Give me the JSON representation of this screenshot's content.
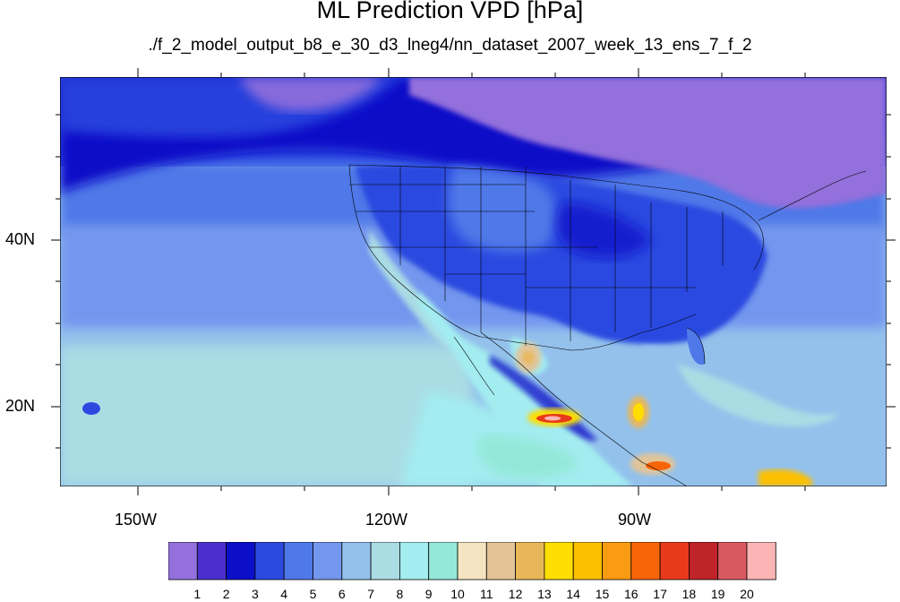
{
  "title": "ML Prediction VPD [hPa]",
  "subtitle": "./f_2_model_output_b8_e_30_d3_lneg4/nn_dataset_2007_week_13_ens_7_f_2",
  "axes": {
    "lon_ticks": [
      {
        "label": "150W",
        "value": -150
      },
      {
        "label": "120W",
        "value": -120
      },
      {
        "label": "90W",
        "value": -90
      }
    ],
    "lat_ticks": [
      {
        "label": "40N",
        "value": 40
      },
      {
        "label": "20N",
        "value": 20
      }
    ]
  },
  "colorbar": {
    "colors": [
      "#9370db",
      "#4b2fcd",
      "#0b0fc8",
      "#2c49e0",
      "#4f78e8",
      "#7396ee",
      "#93c1ec",
      "#aadce4",
      "#a3ecf0",
      "#93e8d8",
      "#f4e4c2",
      "#e2c497",
      "#e8b858",
      "#fede00",
      "#fdc000",
      "#fb9a13",
      "#f86408",
      "#e83a1a",
      "#bf2429",
      "#d85a60",
      "#fbb5b5"
    ],
    "labels": [
      "1",
      "2",
      "3",
      "4",
      "5",
      "6",
      "7",
      "8",
      "9",
      "10",
      "11",
      "12",
      "13",
      "14",
      "15",
      "16",
      "17",
      "18",
      "19",
      "20"
    ]
  }
}
